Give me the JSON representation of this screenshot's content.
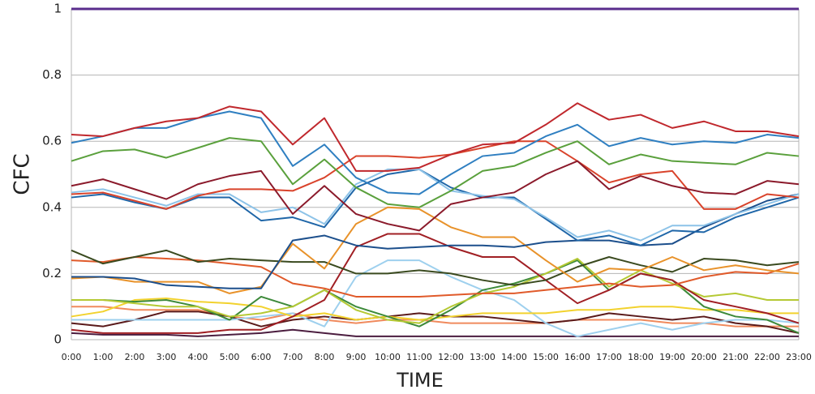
{
  "chart_data": {
    "type": "line",
    "x_label": "TIME",
    "y_label": "CFC",
    "categories": [
      "0:00",
      "1:00",
      "2:00",
      "3:00",
      "4:00",
      "5:00",
      "6:00",
      "7:00",
      "8:00",
      "9:00",
      "10:00",
      "11:00",
      "12:00",
      "13:00",
      "14:00",
      "15:00",
      "16:00",
      "17:00",
      "18:00",
      "19:00",
      "20:00",
      "21:00",
      "22:00",
      "23:00"
    ],
    "ylim": [
      0,
      1
    ],
    "yticks": [
      0,
      0.2,
      0.4,
      0.6,
      0.8,
      1
    ],
    "grid": true,
    "series": [
      {
        "color": "#5a2d8c",
        "values": [
          1,
          1,
          1,
          1,
          1,
          1,
          1,
          1,
          1,
          1,
          1,
          1,
          1,
          1,
          1,
          1,
          1,
          1,
          1,
          1,
          1,
          1,
          1,
          1
        ]
      },
      {
        "color": "#c0282d",
        "values": [
          0.62,
          0.615,
          0.64,
          0.66,
          0.67,
          0.705,
          0.69,
          0.59,
          0.67,
          0.51,
          0.51,
          0.52,
          0.56,
          0.59,
          0.595,
          0.65,
          0.715,
          0.665,
          0.68,
          0.64,
          0.66,
          0.63,
          0.63,
          0.615
        ]
      },
      {
        "color": "#2f7fc1",
        "values": [
          0.595,
          0.615,
          0.64,
          0.64,
          0.67,
          0.69,
          0.67,
          0.525,
          0.59,
          0.49,
          0.445,
          0.44,
          0.5,
          0.555,
          0.565,
          0.615,
          0.65,
          0.585,
          0.61,
          0.59,
          0.6,
          0.595,
          0.62,
          0.61
        ]
      },
      {
        "color": "#5aa03c",
        "values": [
          0.54,
          0.57,
          0.575,
          0.55,
          0.58,
          0.61,
          0.6,
          0.47,
          0.545,
          0.46,
          0.41,
          0.4,
          0.45,
          0.51,
          0.525,
          0.565,
          0.6,
          0.53,
          0.56,
          0.54,
          0.535,
          0.53,
          0.565,
          0.555
        ]
      },
      {
        "color": "#8b1a2b",
        "values": [
          0.465,
          0.485,
          0.455,
          0.425,
          0.47,
          0.495,
          0.51,
          0.38,
          0.465,
          0.38,
          0.35,
          0.33,
          0.41,
          0.43,
          0.445,
          0.5,
          0.54,
          0.455,
          0.495,
          0.465,
          0.445,
          0.44,
          0.48,
          0.47
        ]
      },
      {
        "color": "#d9432b",
        "values": [
          0.44,
          0.445,
          0.42,
          0.395,
          0.435,
          0.455,
          0.455,
          0.45,
          0.49,
          0.555,
          0.555,
          0.55,
          0.56,
          0.58,
          0.6,
          0.6,
          0.54,
          0.475,
          0.5,
          0.51,
          0.395,
          0.395,
          0.44,
          0.43
        ]
      },
      {
        "color": "#8dc3e8",
        "values": [
          0.445,
          0.455,
          0.43,
          0.405,
          0.44,
          0.44,
          0.385,
          0.4,
          0.35,
          0.47,
          0.515,
          0.515,
          0.45,
          0.435,
          0.425,
          0.37,
          0.31,
          0.33,
          0.3,
          0.345,
          0.345,
          0.38,
          0.41,
          0.44
        ]
      },
      {
        "color": "#1f66a8",
        "values": [
          0.43,
          0.44,
          0.415,
          0.395,
          0.43,
          0.43,
          0.36,
          0.37,
          0.34,
          0.46,
          0.5,
          0.515,
          0.46,
          0.43,
          0.43,
          0.365,
          0.3,
          0.315,
          0.285,
          0.33,
          0.325,
          0.37,
          0.4,
          0.43
        ]
      },
      {
        "color": "#1c4f8c",
        "values": [
          0.19,
          0.19,
          0.185,
          0.165,
          0.16,
          0.155,
          0.155,
          0.3,
          0.315,
          0.285,
          0.275,
          0.28,
          0.285,
          0.285,
          0.28,
          0.295,
          0.3,
          0.3,
          0.285,
          0.29,
          0.34,
          0.38,
          0.42,
          0.44
        ]
      },
      {
        "color": "#e8922a",
        "values": [
          0.185,
          0.19,
          0.175,
          0.175,
          0.175,
          0.14,
          0.16,
          0.29,
          0.215,
          0.35,
          0.4,
          0.395,
          0.34,
          0.31,
          0.31,
          0.24,
          0.175,
          0.215,
          0.21,
          0.25,
          0.21,
          0.225,
          0.21,
          0.2
        ]
      },
      {
        "color": "#3a4a1f",
        "values": [
          0.27,
          0.23,
          0.25,
          0.27,
          0.235,
          0.245,
          0.24,
          0.235,
          0.235,
          0.2,
          0.2,
          0.21,
          0.2,
          0.18,
          0.165,
          0.18,
          0.22,
          0.25,
          0.225,
          0.205,
          0.245,
          0.24,
          0.225,
          0.235
        ]
      },
      {
        "color": "#e05a2a",
        "values": [
          0.24,
          0.235,
          0.25,
          0.245,
          0.24,
          0.23,
          0.22,
          0.17,
          0.155,
          0.13,
          0.13,
          0.13,
          0.135,
          0.14,
          0.14,
          0.15,
          0.16,
          0.17,
          0.16,
          0.165,
          0.19,
          0.205,
          0.2,
          0.23
        ]
      },
      {
        "color": "#a01f24",
        "values": [
          0.03,
          0.02,
          0.02,
          0.02,
          0.02,
          0.03,
          0.03,
          0.07,
          0.12,
          0.28,
          0.32,
          0.32,
          0.28,
          0.25,
          0.25,
          0.18,
          0.11,
          0.15,
          0.2,
          0.18,
          0.12,
          0.1,
          0.08,
          0.05
        ]
      },
      {
        "color": "#b5c934",
        "values": [
          0.12,
          0.12,
          0.11,
          0.1,
          0.1,
          0.07,
          0.08,
          0.1,
          0.15,
          0.09,
          0.06,
          0.05,
          0.1,
          0.14,
          0.16,
          0.2,
          0.245,
          0.16,
          0.21,
          0.17,
          0.13,
          0.14,
          0.12,
          0.12
        ]
      },
      {
        "color": "#3d8a3a",
        "values": [
          0.12,
          0.12,
          0.115,
          0.12,
          0.1,
          0.06,
          0.13,
          0.1,
          0.15,
          0.1,
          0.07,
          0.04,
          0.09,
          0.15,
          0.17,
          0.2,
          0.24,
          0.15,
          0.2,
          0.18,
          0.1,
          0.07,
          0.06,
          0.02
        ]
      },
      {
        "color": "#f2d22e",
        "values": [
          0.07,
          0.085,
          0.12,
          0.125,
          0.115,
          0.11,
          0.1,
          0.07,
          0.08,
          0.06,
          0.07,
          0.06,
          0.07,
          0.08,
          0.08,
          0.08,
          0.09,
          0.09,
          0.1,
          0.1,
          0.09,
          0.09,
          0.08,
          0.08
        ]
      },
      {
        "color": "#9ed0ee",
        "values": [
          0.06,
          0.06,
          0.06,
          0.06,
          0.06,
          0.06,
          0.07,
          0.08,
          0.04,
          0.19,
          0.24,
          0.24,
          0.19,
          0.15,
          0.12,
          0.05,
          0.01,
          0.03,
          0.05,
          0.03,
          0.05,
          0.06,
          0.06,
          0.05
        ]
      },
      {
        "color": "#5a1a1a",
        "values": [
          0.05,
          0.04,
          0.06,
          0.085,
          0.085,
          0.07,
          0.04,
          0.06,
          0.07,
          0.06,
          0.07,
          0.08,
          0.07,
          0.07,
          0.06,
          0.05,
          0.06,
          0.08,
          0.07,
          0.06,
          0.07,
          0.05,
          0.04,
          0.02
        ]
      },
      {
        "color": "#4b1d3f",
        "values": [
          0.02,
          0.015,
          0.015,
          0.015,
          0.01,
          0.015,
          0.02,
          0.03,
          0.02,
          0.01,
          0.01,
          0.01,
          0.01,
          0.01,
          0.01,
          0.01,
          0.01,
          0.01,
          0.01,
          0.01,
          0.01,
          0.01,
          0.01,
          0.01
        ]
      },
      {
        "color": "#f08a5d",
        "values": [
          0.1,
          0.1,
          0.09,
          0.09,
          0.09,
          0.07,
          0.06,
          0.08,
          0.06,
          0.05,
          0.06,
          0.06,
          0.05,
          0.05,
          0.05,
          0.05,
          0.06,
          0.06,
          0.06,
          0.05,
          0.05,
          0.04,
          0.04,
          0.04
        ]
      }
    ]
  }
}
